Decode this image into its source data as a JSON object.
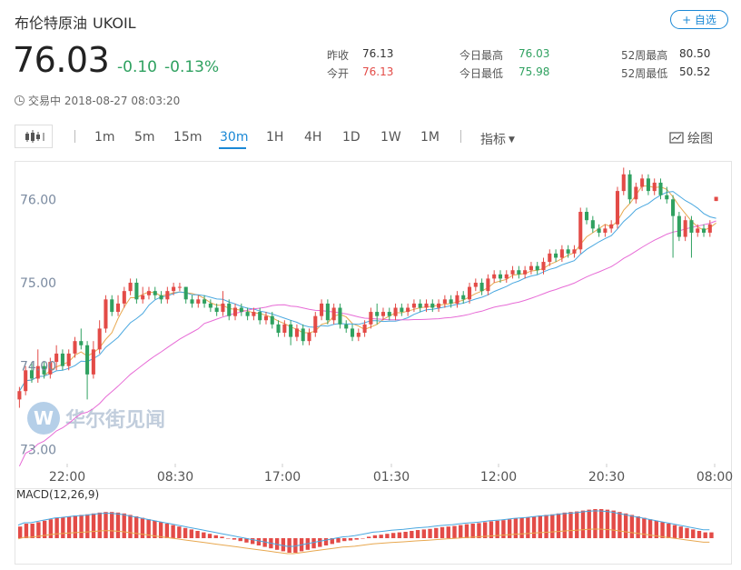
{
  "header": {
    "name": "布伦特原油",
    "code": "UKOIL",
    "add_label": "+ 自选",
    "price": "76.03",
    "change": "-0.10",
    "change_pct": "-0.13%",
    "status": "交易中 2018-08-27 08:03:20"
  },
  "stats": {
    "prev_close_label": "昨收",
    "prev_close": "76.13",
    "open_label": "今开",
    "open": "76.13",
    "high_label": "今日最高",
    "high": "76.03",
    "low_label": "今日最低",
    "low": "75.98",
    "w52_high_label": "52周最高",
    "w52_high": "80.50",
    "w52_low_label": "52周最低",
    "w52_low": "50.52"
  },
  "toolbar": {
    "periods": [
      "1m",
      "5m",
      "15m",
      "30m",
      "1H",
      "4H",
      "1D",
      "1W",
      "1M"
    ],
    "active_period": "30m",
    "indicator_label": "指标",
    "draw_label": "绘图"
  },
  "watermark": "华尔街见闻",
  "colors": {
    "up": "#e34b47",
    "down": "#2fa160",
    "accent": "#1a88d6",
    "ma_short": "#e8a850",
    "ma_mid": "#4aa8e0",
    "ma_long": "#e76bd6"
  },
  "chart_data": {
    "type": "candlestick",
    "y_ticks": [
      "76.00",
      "75.00",
      "74.00",
      "73.00"
    ],
    "y_tick_values": [
      76.0,
      75.0,
      74.0,
      73.0
    ],
    "ylim": [
      72.83,
      76.45
    ],
    "x_ticks": [
      "22:00",
      "08:30",
      "17:00",
      "01:30",
      "12:00",
      "20:30",
      "08:00"
    ],
    "macd_label": "MACD(12,26,9)",
    "last_price": 76.03,
    "candles": [
      [
        73.6,
        73.7,
        73.5,
        73.75
      ],
      [
        73.7,
        73.95,
        73.65,
        74.0
      ],
      [
        73.95,
        73.85,
        73.8,
        74.05
      ],
      [
        73.85,
        74.0,
        73.8,
        74.2
      ],
      [
        74.0,
        73.9,
        73.85,
        74.05
      ],
      [
        73.9,
        74.05,
        73.85,
        74.1
      ],
      [
        74.05,
        74.15,
        73.95,
        74.25
      ],
      [
        74.15,
        74.0,
        73.95,
        74.2
      ],
      [
        74.0,
        74.15,
        73.95,
        74.2
      ],
      [
        74.15,
        74.3,
        74.1,
        74.35
      ],
      [
        74.3,
        74.25,
        74.2,
        74.45
      ],
      [
        74.25,
        73.9,
        73.6,
        74.3
      ],
      [
        73.9,
        74.2,
        73.85,
        74.3
      ],
      [
        74.2,
        74.45,
        74.15,
        74.55
      ],
      [
        74.45,
        74.8,
        74.4,
        74.85
      ],
      [
        74.8,
        74.65,
        74.6,
        74.85
      ],
      [
        74.65,
        74.75,
        74.6,
        74.85
      ],
      [
        74.75,
        74.9,
        74.7,
        74.95
      ],
      [
        74.9,
        75.0,
        74.85,
        75.05
      ],
      [
        75.0,
        74.8,
        74.75,
        75.05
      ],
      [
        74.8,
        74.85,
        74.75,
        74.95
      ],
      [
        74.85,
        74.9,
        74.8,
        74.95
      ],
      [
        74.9,
        74.85,
        74.8,
        74.95
      ],
      [
        74.85,
        74.8,
        74.75,
        74.9
      ],
      [
        74.8,
        74.9,
        74.75,
        74.95
      ],
      [
        74.9,
        74.95,
        74.85,
        75.0
      ],
      [
        74.95,
        74.95,
        74.9,
        75.0
      ],
      [
        74.95,
        74.8,
        74.75,
        74.95
      ],
      [
        74.8,
        74.75,
        74.7,
        74.85
      ],
      [
        74.75,
        74.8,
        74.7,
        74.85
      ],
      [
        74.8,
        74.75,
        74.7,
        74.85
      ],
      [
        74.75,
        74.7,
        74.65,
        74.8
      ],
      [
        74.7,
        74.65,
        74.6,
        74.75
      ],
      [
        74.65,
        74.75,
        74.6,
        74.9
      ],
      [
        74.75,
        74.6,
        74.55,
        74.8
      ],
      [
        74.6,
        74.7,
        74.55,
        74.75
      ],
      [
        74.7,
        74.65,
        74.6,
        74.75
      ],
      [
        74.65,
        74.6,
        74.55,
        74.7
      ],
      [
        74.6,
        74.65,
        74.55,
        74.7
      ],
      [
        74.65,
        74.55,
        74.5,
        74.7
      ],
      [
        74.55,
        74.6,
        74.5,
        74.65
      ],
      [
        74.6,
        74.5,
        74.45,
        74.65
      ],
      [
        74.5,
        74.4,
        74.35,
        74.55
      ],
      [
        74.4,
        74.5,
        74.35,
        74.55
      ],
      [
        74.5,
        74.35,
        74.25,
        74.55
      ],
      [
        74.35,
        74.45,
        74.3,
        74.5
      ],
      [
        74.45,
        74.3,
        74.25,
        74.5
      ],
      [
        74.3,
        74.4,
        74.25,
        74.45
      ],
      [
        74.4,
        74.6,
        74.35,
        74.65
      ],
      [
        74.6,
        74.75,
        74.55,
        74.8
      ],
      [
        74.75,
        74.55,
        74.5,
        74.8
      ],
      [
        74.55,
        74.7,
        74.5,
        74.75
      ],
      [
        74.7,
        74.5,
        74.45,
        74.75
      ],
      [
        74.5,
        74.45,
        74.4,
        74.55
      ],
      [
        74.45,
        74.35,
        74.3,
        74.5
      ],
      [
        74.35,
        74.4,
        74.3,
        74.45
      ],
      [
        74.4,
        74.5,
        74.35,
        74.55
      ],
      [
        74.5,
        74.65,
        74.45,
        74.7
      ],
      [
        74.65,
        74.6,
        74.5,
        74.75
      ],
      [
        74.6,
        74.65,
        74.55,
        74.7
      ],
      [
        74.65,
        74.6,
        74.55,
        74.7
      ],
      [
        74.6,
        74.7,
        74.55,
        74.75
      ],
      [
        74.7,
        74.65,
        74.6,
        74.75
      ],
      [
        74.65,
        74.7,
        74.6,
        74.75
      ],
      [
        74.7,
        74.75,
        74.65,
        74.8
      ],
      [
        74.75,
        74.7,
        74.65,
        74.8
      ],
      [
        74.7,
        74.75,
        74.65,
        74.8
      ],
      [
        74.75,
        74.7,
        74.65,
        74.8
      ],
      [
        74.7,
        74.75,
        74.65,
        74.8
      ],
      [
        74.75,
        74.8,
        74.7,
        74.85
      ],
      [
        74.8,
        74.75,
        74.7,
        74.85
      ],
      [
        74.75,
        74.85,
        74.7,
        74.9
      ],
      [
        74.85,
        74.8,
        74.75,
        74.9
      ],
      [
        74.8,
        74.95,
        74.75,
        75.0
      ],
      [
        74.95,
        75.0,
        74.9,
        75.05
      ],
      [
        75.0,
        74.9,
        74.85,
        75.05
      ],
      [
        74.9,
        75.05,
        74.85,
        75.1
      ],
      [
        75.05,
        75.1,
        75.0,
        75.15
      ],
      [
        75.1,
        75.05,
        75.0,
        75.15
      ],
      [
        75.05,
        75.1,
        75.0,
        75.15
      ],
      [
        75.1,
        75.15,
        75.05,
        75.2
      ],
      [
        75.15,
        75.1,
        75.05,
        75.2
      ],
      [
        75.1,
        75.15,
        75.05,
        75.2
      ],
      [
        75.15,
        75.2,
        75.1,
        75.25
      ],
      [
        75.2,
        75.15,
        75.1,
        75.25
      ],
      [
        75.15,
        75.25,
        75.1,
        75.3
      ],
      [
        75.25,
        75.35,
        75.2,
        75.4
      ],
      [
        75.35,
        75.3,
        75.25,
        75.4
      ],
      [
        75.3,
        75.4,
        75.25,
        75.45
      ],
      [
        75.4,
        75.35,
        75.3,
        75.45
      ],
      [
        75.35,
        75.4,
        75.3,
        75.45
      ],
      [
        75.4,
        75.85,
        75.35,
        75.9
      ],
      [
        75.85,
        75.75,
        75.7,
        75.9
      ],
      [
        75.75,
        75.65,
        75.6,
        75.8
      ],
      [
        75.65,
        75.6,
        75.55,
        75.7
      ],
      [
        75.6,
        75.65,
        75.55,
        75.7
      ],
      [
        75.65,
        75.7,
        75.6,
        75.75
      ],
      [
        75.7,
        76.1,
        75.65,
        76.15
      ],
      [
        76.1,
        76.3,
        76.05,
        76.38
      ],
      [
        76.3,
        76.0,
        75.95,
        76.35
      ],
      [
        76.0,
        76.15,
        75.95,
        76.2
      ],
      [
        76.15,
        76.25,
        76.1,
        76.3
      ],
      [
        76.25,
        76.1,
        76.05,
        76.3
      ],
      [
        76.1,
        76.2,
        76.05,
        76.25
      ],
      [
        76.2,
        76.05,
        76.0,
        76.25
      ],
      [
        76.05,
        76.0,
        75.95,
        76.15
      ],
      [
        76.0,
        75.8,
        75.3,
        76.05
      ],
      [
        75.8,
        75.55,
        75.5,
        75.85
      ],
      [
        75.55,
        75.75,
        75.5,
        75.8
      ],
      [
        75.75,
        75.6,
        75.3,
        75.8
      ],
      [
        75.6,
        75.65,
        75.55,
        75.7
      ],
      [
        75.65,
        75.6,
        75.55,
        75.7
      ],
      [
        75.6,
        75.7,
        75.55,
        75.75
      ],
      [
        75.98,
        76.03,
        75.98,
        76.03
      ]
    ],
    "macd": [
      0.04,
      0.05,
      0.05,
      0.055,
      0.06,
      0.065,
      0.07,
      0.072,
      0.075,
      0.078,
      0.08,
      0.082,
      0.085,
      0.088,
      0.09,
      0.09,
      0.088,
      0.085,
      0.08,
      0.075,
      0.07,
      0.065,
      0.06,
      0.055,
      0.05,
      0.045,
      0.04,
      0.035,
      0.03,
      0.025,
      0.02,
      0.015,
      0.01,
      0.005,
      0.0,
      -0.005,
      -0.01,
      -0.015,
      -0.02,
      -0.025,
      -0.03,
      -0.035,
      -0.04,
      -0.045,
      -0.05,
      -0.05,
      -0.045,
      -0.04,
      -0.035,
      -0.03,
      -0.025,
      -0.02,
      -0.015,
      -0.01,
      -0.008,
      -0.005,
      0.0,
      0.005,
      0.01,
      0.012,
      0.015,
      0.018,
      0.02,
      0.022,
      0.025,
      0.028,
      0.03,
      0.032,
      0.035,
      0.038,
      0.04,
      0.042,
      0.045,
      0.048,
      0.05,
      0.052,
      0.055,
      0.058,
      0.06,
      0.062,
      0.065,
      0.068,
      0.07,
      0.072,
      0.075,
      0.078,
      0.08,
      0.082,
      0.085,
      0.088,
      0.09,
      0.092,
      0.095,
      0.098,
      0.1,
      0.1,
      0.098,
      0.095,
      0.09,
      0.085,
      0.08,
      0.075,
      0.07,
      0.065,
      0.06,
      0.055,
      0.05,
      0.045,
      0.04,
      0.035,
      0.03,
      0.025,
      0.02,
      0.02
    ],
    "macd_hist_color": "#e34b47"
  }
}
